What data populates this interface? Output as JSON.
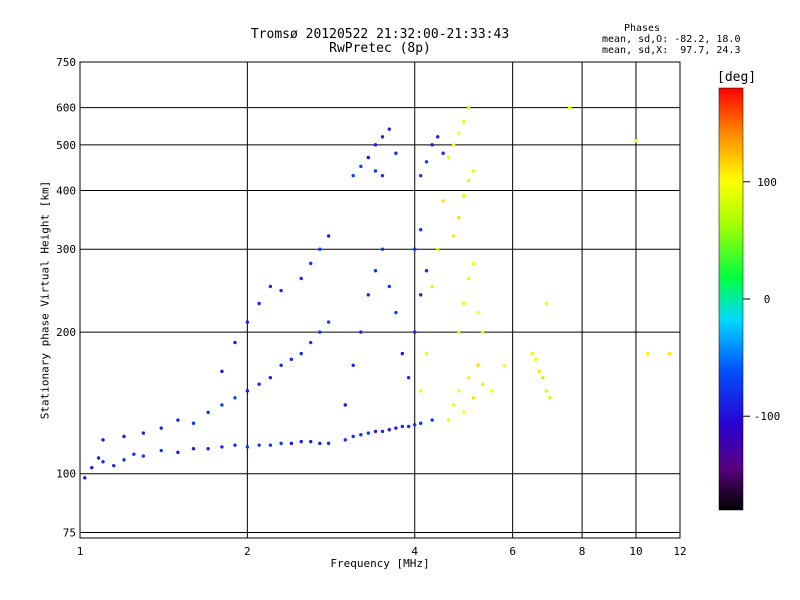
{
  "chart_data": {
    "type": "scatter",
    "title": "Tromsø 20120522 21:32:00-21:33:43",
    "subtitle": "RwPretec (8p)",
    "xlabel": "Frequency [MHz]",
    "ylabel": "Stationary phase Virtual Height [km]",
    "x_scale": "log",
    "y_scale": "log",
    "xlim": [
      1,
      12
    ],
    "ylim": [
      73,
      750
    ],
    "x_ticks": [
      "1",
      "2",
      "4",
      "6",
      "8",
      "10",
      "12"
    ],
    "y_ticks": [
      "75",
      "100",
      "200",
      "300",
      "400",
      "500",
      "600",
      "750"
    ],
    "grid": true,
    "phases": {
      "heading": "Phases",
      "line_o": "mean, sd,O: -82.2, 18.0",
      "line_x": "mean, sd,X:  97.7, 24.3"
    },
    "colorbar": {
      "unit": "[deg]",
      "ticks": [
        "100",
        "0",
        "-100"
      ],
      "range": [
        -180,
        180
      ],
      "colormap": "rainbow (black-purple-blue-cyan-green-yellow-red)"
    },
    "series": [
      {
        "name": "O",
        "mean_phase": -82.2,
        "sd_phase": 18.0,
        "points": [
          [
            1.02,
            98
          ],
          [
            1.05,
            103
          ],
          [
            1.08,
            108
          ],
          [
            1.1,
            106
          ],
          [
            1.15,
            104
          ],
          [
            1.2,
            107
          ],
          [
            1.25,
            110
          ],
          [
            1.3,
            109
          ],
          [
            1.4,
            112
          ],
          [
            1.5,
            111
          ],
          [
            1.6,
            113
          ],
          [
            1.7,
            113
          ],
          [
            1.8,
            114
          ],
          [
            1.9,
            115
          ],
          [
            2.0,
            114
          ],
          [
            2.1,
            115
          ],
          [
            2.2,
            115
          ],
          [
            2.3,
            116
          ],
          [
            2.4,
            116
          ],
          [
            2.5,
            117
          ],
          [
            2.6,
            117
          ],
          [
            2.7,
            116
          ],
          [
            2.8,
            116
          ],
          [
            3.0,
            118
          ],
          [
            3.1,
            120
          ],
          [
            3.2,
            121
          ],
          [
            3.3,
            122
          ],
          [
            3.4,
            123
          ],
          [
            3.5,
            123
          ],
          [
            3.6,
            124
          ],
          [
            3.7,
            125
          ],
          [
            3.8,
            126
          ],
          [
            3.9,
            126
          ],
          [
            4.0,
            127
          ],
          [
            4.1,
            128
          ],
          [
            4.3,
            130
          ],
          [
            1.1,
            118
          ],
          [
            1.2,
            120
          ],
          [
            1.3,
            122
          ],
          [
            1.4,
            125
          ],
          [
            1.5,
            130
          ],
          [
            1.6,
            128
          ],
          [
            1.7,
            135
          ],
          [
            1.8,
            140
          ],
          [
            1.9,
            145
          ],
          [
            2.0,
            150
          ],
          [
            2.1,
            155
          ],
          [
            2.2,
            160
          ],
          [
            2.3,
            170
          ],
          [
            2.4,
            175
          ],
          [
            2.5,
            180
          ],
          [
            2.6,
            190
          ],
          [
            2.7,
            200
          ],
          [
            2.8,
            210
          ],
          [
            1.8,
            165
          ],
          [
            1.9,
            190
          ],
          [
            2.0,
            210
          ],
          [
            2.1,
            230
          ],
          [
            2.2,
            250
          ],
          [
            2.3,
            245
          ],
          [
            2.5,
            260
          ],
          [
            2.6,
            280
          ],
          [
            2.7,
            300
          ],
          [
            2.8,
            320
          ],
          [
            3.0,
            140
          ],
          [
            3.1,
            170
          ],
          [
            3.2,
            200
          ],
          [
            3.3,
            240
          ],
          [
            3.4,
            270
          ],
          [
            3.5,
            300
          ],
          [
            3.6,
            250
          ],
          [
            3.7,
            220
          ],
          [
            3.8,
            180
          ],
          [
            3.9,
            160
          ],
          [
            4.0,
            200
          ],
          [
            4.1,
            240
          ],
          [
            4.2,
            270
          ],
          [
            4.0,
            300
          ],
          [
            4.1,
            330
          ],
          [
            3.1,
            430
          ],
          [
            3.2,
            450
          ],
          [
            3.3,
            470
          ],
          [
            3.4,
            500
          ],
          [
            3.5,
            520
          ],
          [
            3.6,
            540
          ],
          [
            3.7,
            480
          ],
          [
            3.4,
            440
          ],
          [
            3.5,
            430
          ],
          [
            4.1,
            430
          ],
          [
            4.2,
            460
          ],
          [
            4.3,
            500
          ],
          [
            4.4,
            520
          ],
          [
            4.5,
            480
          ]
        ]
      },
      {
        "name": "X",
        "mean_phase": 97.7,
        "sd_phase": 24.3,
        "points": [
          [
            4.6,
            130
          ],
          [
            4.7,
            140
          ],
          [
            4.8,
            150
          ],
          [
            4.9,
            135
          ],
          [
            5.0,
            160
          ],
          [
            5.1,
            145
          ],
          [
            5.2,
            170
          ],
          [
            5.3,
            155
          ],
          [
            4.8,
            200
          ],
          [
            4.9,
            230
          ],
          [
            5.0,
            260
          ],
          [
            5.1,
            280
          ],
          [
            5.2,
            220
          ],
          [
            5.3,
            200
          ],
          [
            4.7,
            320
          ],
          [
            4.8,
            350
          ],
          [
            4.9,
            390
          ],
          [
            5.0,
            420
          ],
          [
            5.1,
            440
          ],
          [
            4.6,
            470
          ],
          [
            4.7,
            500
          ],
          [
            4.8,
            530
          ],
          [
            4.9,
            560
          ],
          [
            5.0,
            600
          ],
          [
            4.5,
            380
          ],
          [
            4.4,
            300
          ],
          [
            4.3,
            250
          ],
          [
            4.2,
            180
          ],
          [
            4.1,
            150
          ],
          [
            5.5,
            150
          ],
          [
            5.8,
            170
          ],
          [
            6.6,
            175
          ],
          [
            6.7,
            165
          ],
          [
            6.8,
            160
          ],
          [
            6.9,
            150
          ],
          [
            7.0,
            145
          ],
          [
            6.5,
            180
          ],
          [
            6.9,
            230
          ],
          [
            7.6,
            600
          ],
          [
            10.0,
            510
          ],
          [
            10.5,
            180
          ],
          [
            11.5,
            180
          ]
        ]
      }
    ]
  }
}
